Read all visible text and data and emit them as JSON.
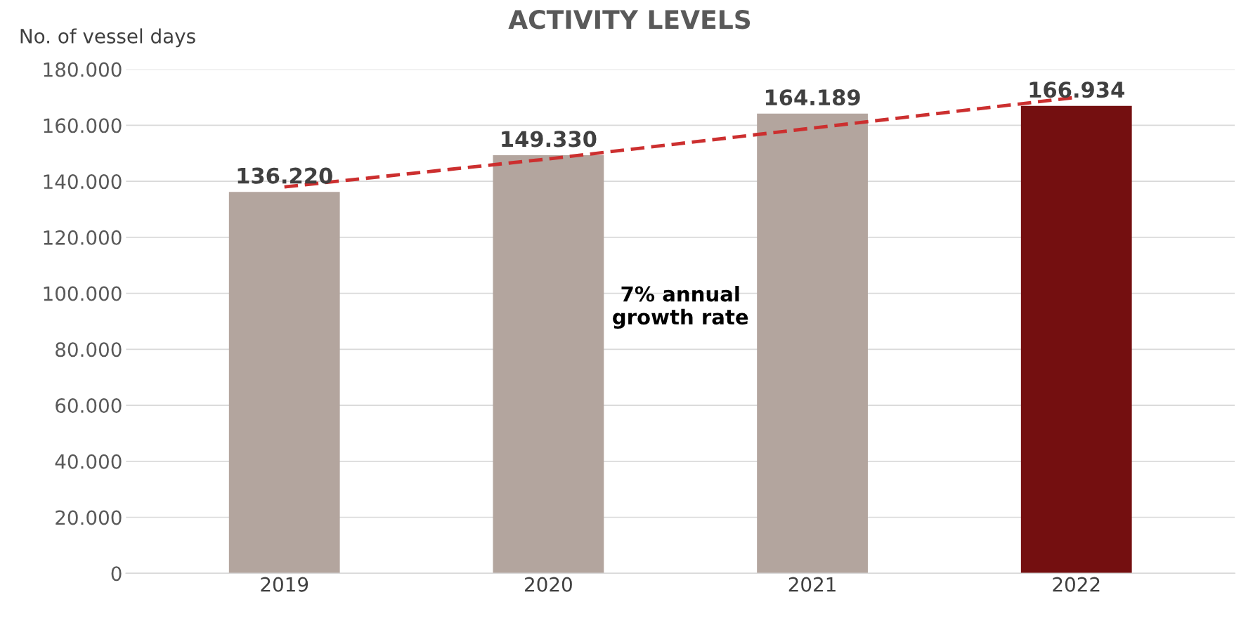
{
  "chart_data": {
    "type": "bar",
    "title": "ACTIVITY LEVELS",
    "ylabel": "No. of vessel days",
    "categories": [
      "2019",
      "2020",
      "2021",
      "2022"
    ],
    "series": [
      {
        "colors": [
          "#b3a59e",
          "#b3a59e",
          "#b3a59e",
          "#740f10"
        ],
        "values": [
          136220,
          149330,
          164189,
          166934
        ],
        "value_labels": [
          "136.220",
          "149.330",
          "164.189",
          "166.934"
        ]
      },
      {
        "type": "line",
        "color": "#cc2f2f",
        "line_style": "dashed",
        "values": [
          138000,
          148000,
          159000,
          170000
        ]
      }
    ],
    "ylim": [
      0,
      180000
    ],
    "yticks": [
      {
        "value": 0,
        "label": "0"
      },
      {
        "value": 20000,
        "label": "20.000"
      },
      {
        "value": 40000,
        "label": "40.000"
      },
      {
        "value": 60000,
        "label": "60.000"
      },
      {
        "value": 80000,
        "label": "80.000"
      },
      {
        "value": 100000,
        "label": "100.000"
      },
      {
        "value": 120000,
        "label": "120.000"
      },
      {
        "value": 140000,
        "label": "140.000"
      },
      {
        "value": 160000,
        "label": "160.000"
      },
      {
        "value": 180000,
        "label": "180.000"
      }
    ],
    "grid": "y",
    "annotations": [
      "7% annual\ngrowth rate"
    ]
  }
}
